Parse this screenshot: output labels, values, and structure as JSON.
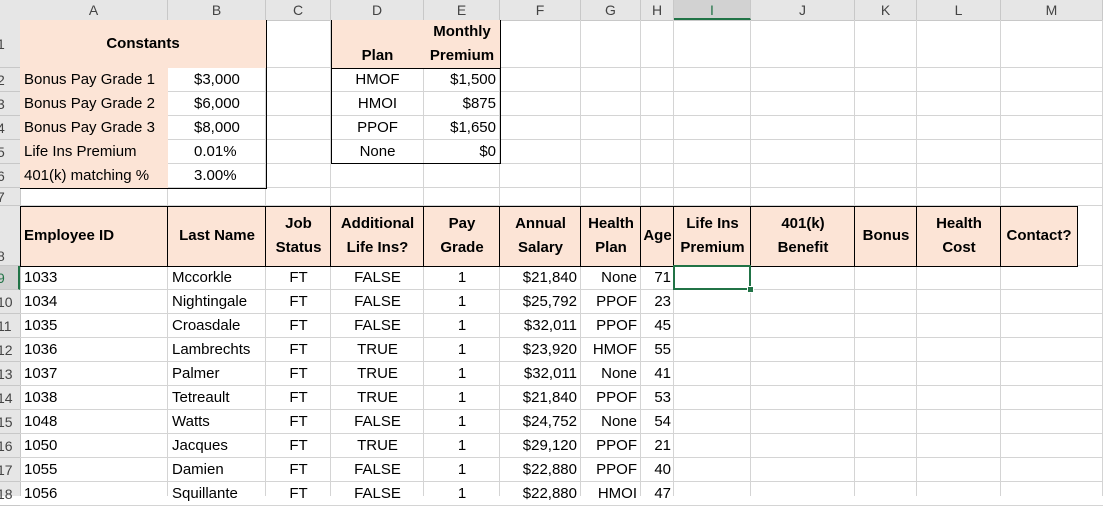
{
  "columns": [
    "A",
    "B",
    "C",
    "D",
    "E",
    "F",
    "G",
    "H",
    "I",
    "J",
    "K",
    "L",
    "M"
  ],
  "selected_column": "I",
  "rows_visible": [
    "1",
    "2",
    "3",
    "4",
    "5",
    "6",
    "7",
    "8",
    "9",
    "10",
    "11",
    "12",
    "13",
    "14",
    "15",
    "16",
    "17",
    "18"
  ],
  "selected_row": "9",
  "constants": {
    "title": "Constants",
    "items": [
      {
        "label": "Bonus Pay Grade 1",
        "value": "$3,000"
      },
      {
        "label": "Bonus Pay Grade 2",
        "value": "$6,000"
      },
      {
        "label": "Bonus Pay Grade 3",
        "value": "$8,000"
      },
      {
        "label": "Life Ins Premium",
        "value": "0.01%"
      },
      {
        "label": "401(k) matching %",
        "value": "3.00%"
      }
    ]
  },
  "plans": {
    "header_plan": "Plan",
    "header_premium_1": "Monthly",
    "header_premium_2": "Premium",
    "items": [
      {
        "plan": "HMOF",
        "premium": "$1,500"
      },
      {
        "plan": "HMOI",
        "premium": "$875"
      },
      {
        "plan": "PPOF",
        "premium": "$1,650"
      },
      {
        "plan": "None",
        "premium": "$0"
      }
    ]
  },
  "headers": {
    "employee_id": "Employee ID",
    "last_name": "Last Name",
    "job_status_1": "Job",
    "job_status_2": "Status",
    "add_life_1": "Additional",
    "add_life_2": "Life Ins?",
    "pay_grade_1": "Pay",
    "pay_grade_2": "Grade",
    "salary_1": "Annual",
    "salary_2": "Salary",
    "health_plan_1": "Health",
    "health_plan_2": "Plan",
    "age": "Age",
    "life_prem_1": "Life Ins",
    "life_prem_2": "Premium",
    "k401_1": "401(k)",
    "k401_2": "Benefit",
    "bonus": "Bonus",
    "health_cost_1": "Health",
    "health_cost_2": "Cost",
    "contact": "Contact?"
  },
  "employees": [
    {
      "id": "1033",
      "last": "Mccorkle",
      "status": "FT",
      "addlife": "FALSE",
      "grade": "1",
      "salary": "$21,840",
      "plan": "None",
      "age": "71"
    },
    {
      "id": "1034",
      "last": "Nightingale",
      "status": "FT",
      "addlife": "FALSE",
      "grade": "1",
      "salary": "$25,792",
      "plan": "PPOF",
      "age": "23"
    },
    {
      "id": "1035",
      "last": "Croasdale",
      "status": "FT",
      "addlife": "FALSE",
      "grade": "1",
      "salary": "$32,011",
      "plan": "PPOF",
      "age": "45"
    },
    {
      "id": "1036",
      "last": "Lambrechts",
      "status": "FT",
      "addlife": "TRUE",
      "grade": "1",
      "salary": "$23,920",
      "plan": "HMOF",
      "age": "55"
    },
    {
      "id": "1037",
      "last": "Palmer",
      "status": "FT",
      "addlife": "TRUE",
      "grade": "1",
      "salary": "$32,011",
      "plan": "None",
      "age": "41"
    },
    {
      "id": "1038",
      "last": "Tetreault",
      "status": "FT",
      "addlife": "TRUE",
      "grade": "1",
      "salary": "$21,840",
      "plan": "PPOF",
      "age": "53"
    },
    {
      "id": "1048",
      "last": "Watts",
      "status": "FT",
      "addlife": "FALSE",
      "grade": "1",
      "salary": "$24,752",
      "plan": "None",
      "age": "54"
    },
    {
      "id": "1050",
      "last": "Jacques",
      "status": "FT",
      "addlife": "TRUE",
      "grade": "1",
      "salary": "$29,120",
      "plan": "PPOF",
      "age": "21"
    },
    {
      "id": "1055",
      "last": "Damien",
      "status": "FT",
      "addlife": "FALSE",
      "grade": "1",
      "salary": "$22,880",
      "plan": "PPOF",
      "age": "40"
    },
    {
      "id": "1056",
      "last": "Squillante",
      "status": "FT",
      "addlife": "FALSE",
      "grade": "1",
      "salary": "$22,880",
      "plan": "HMOI",
      "age": "47"
    }
  ],
  "colors": {
    "accent": "#217346",
    "peach": "#fce4d6",
    "header_gray": "#e6e6e6"
  }
}
